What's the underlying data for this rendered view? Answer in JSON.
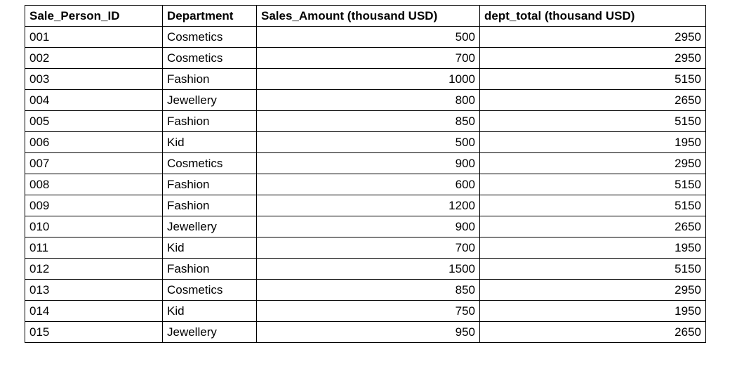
{
  "chart_data": {
    "type": "table",
    "title": "",
    "columns": [
      {
        "label": "Sale_Person_ID",
        "align": "left"
      },
      {
        "label": "Department",
        "align": "left"
      },
      {
        "label": "Sales_Amount (thousand USD)",
        "align": "left"
      },
      {
        "label": "dept_total  (thousand USD)",
        "align": "left"
      }
    ],
    "rows": [
      [
        "001",
        "Cosmetics",
        "500",
        "2950"
      ],
      [
        "002",
        "Cosmetics",
        "700",
        "2950"
      ],
      [
        "003",
        "Fashion",
        "1000",
        "5150"
      ],
      [
        "004",
        "Jewellery",
        "800",
        "2650"
      ],
      [
        "005",
        "Fashion",
        "850",
        "5150"
      ],
      [
        "006",
        "Kid",
        "500",
        "1950"
      ],
      [
        "007",
        "Cosmetics",
        "900",
        "2950"
      ],
      [
        "008",
        "Fashion",
        "600",
        "5150"
      ],
      [
        "009",
        "Fashion",
        "1200",
        "5150"
      ],
      [
        "010",
        "Jewellery",
        "900",
        "2650"
      ],
      [
        "011",
        "Kid",
        "700",
        "1950"
      ],
      [
        "012",
        "Fashion",
        "1500",
        "5150"
      ],
      [
        "013",
        "Cosmetics",
        "850",
        "2950"
      ],
      [
        "014",
        "Kid",
        "750",
        "1950"
      ],
      [
        "015",
        "Jewellery",
        "950",
        "2650"
      ]
    ],
    "department_totals": {
      "Cosmetics": 2950,
      "Fashion": 5150,
      "Jewellery": 2650,
      "Kid": 1950
    },
    "colors": {
      "border": "#000000",
      "text": "#000000",
      "background": "#ffffff"
    }
  }
}
